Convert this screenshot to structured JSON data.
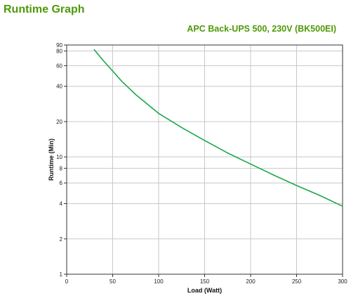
{
  "page": {
    "title": "Runtime Graph"
  },
  "colors": {
    "accent": "#4e9a06",
    "series_line": "#1aa84a",
    "grid": "#c8c8c8"
  },
  "chart_data": {
    "type": "line",
    "title": "",
    "subtitle": "APC Back-UPS 500, 230V (BK500EI)",
    "xlabel": "Load (Watt)",
    "ylabel": "Runtime (Min)",
    "xlim": [
      0,
      300
    ],
    "ylim": [
      1,
      90
    ],
    "y_scale": "log",
    "grid": true,
    "legend": "none",
    "x_ticks": [
      0,
      50,
      100,
      150,
      200,
      250,
      300
    ],
    "y_ticks": [
      1,
      2,
      4,
      6,
      8,
      10,
      20,
      40,
      60,
      80,
      90
    ],
    "series": [
      {
        "x": [
          30,
          40,
          50,
          60,
          75,
          100,
          125,
          150,
          175,
          200,
          225,
          250,
          275,
          300
        ],
        "y": [
          82,
          66,
          54,
          44,
          34,
          23.5,
          17.8,
          13.8,
          10.8,
          8.7,
          7.0,
          5.7,
          4.7,
          3.8
        ]
      }
    ]
  }
}
